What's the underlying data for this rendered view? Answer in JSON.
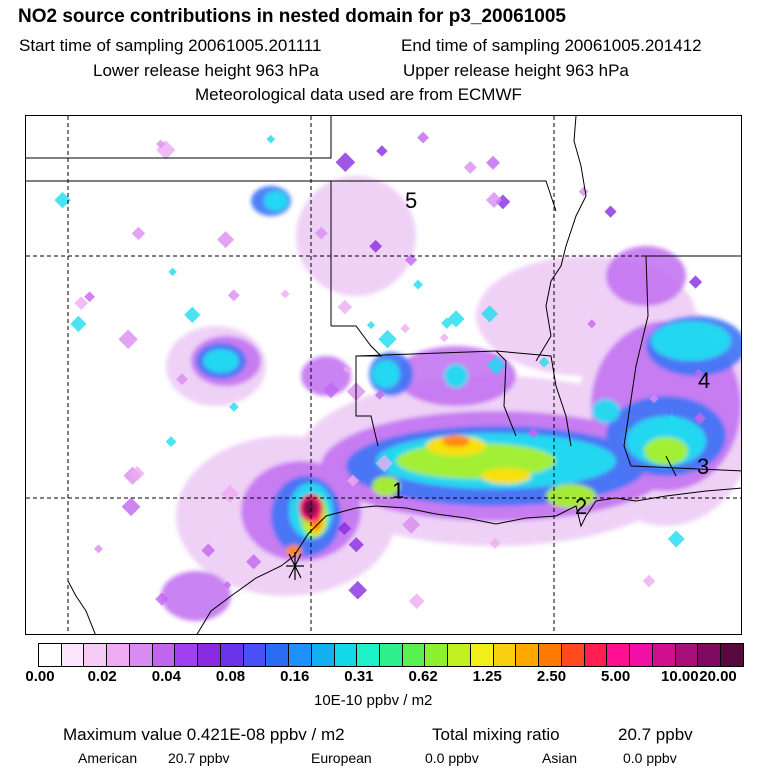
{
  "header": {
    "title": "NO2 source contributions in nested domain for p3_20061005",
    "start_label": "Start time of sampling 20061005.201111",
    "end_label": "End time of sampling 20061005.201412",
    "lower_label": "Lower release height  963 hPa",
    "upper_label": "Upper release height  963 hPa",
    "met_label": "Meteorological data used are from ECMWF"
  },
  "map": {
    "region_labels": [
      "1",
      "2",
      "3",
      "4",
      "5"
    ],
    "source_marker": "asterisk"
  },
  "colorbar": {
    "colors": [
      "#ffffff",
      "#fbe6fb",
      "#f5ccf5",
      "#eeaaf2",
      "#d98cf0",
      "#c266f0",
      "#a040f0",
      "#8a2be2",
      "#6a35e8",
      "#4a50f5",
      "#2b6cf5",
      "#1e90ff",
      "#12b0f0",
      "#14d8e8",
      "#1ef0c8",
      "#2ef08c",
      "#5af050",
      "#8cf030",
      "#c0f020",
      "#f0f018",
      "#f8d010",
      "#ffa800",
      "#ff7a00",
      "#ff4a20",
      "#ff1e50",
      "#ff1090",
      "#f010a8",
      "#d0108f",
      "#a81078",
      "#800a60",
      "#5a0840"
    ],
    "tick_labels": [
      "0.00",
      "0.02",
      "0.04",
      "0.08",
      "0.16",
      "0.31",
      "0.62",
      "1.25",
      "2.50",
      "5.00",
      "10.00",
      "20.00"
    ],
    "units": "10E-10 ppbv / m2"
  },
  "footer": {
    "max_label": "Maximum value  0.421E-08 ppbv / m2",
    "total_label": "Total mixing ratio",
    "total_value": "20.7 ppbv",
    "american_label": "American",
    "american_value": "20.7 ppbv",
    "european_label": "European",
    "european_value": "0.0 ppbv",
    "asian_label": "Asian",
    "asian_value": "0.0 ppbv"
  }
}
